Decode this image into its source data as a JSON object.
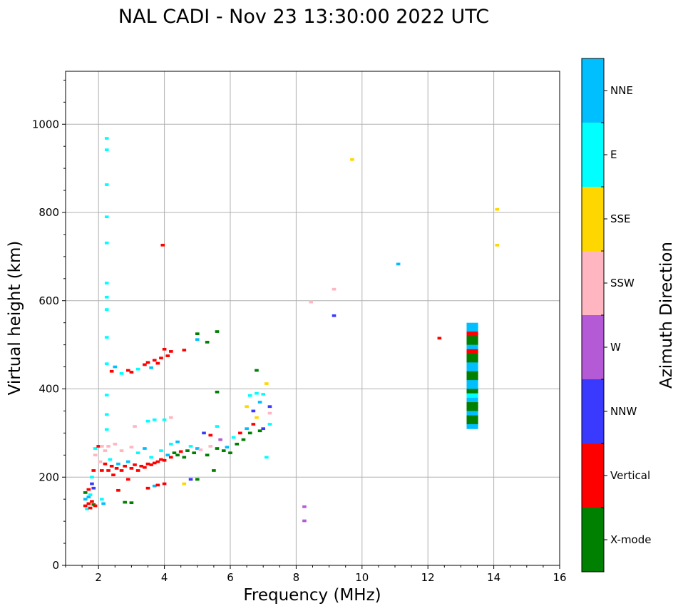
{
  "chart_data": {
    "type": "scatter",
    "title": "NAL CADI - Nov 23 13:30:00 2022 UTC",
    "xlabel": "Frequency (MHz)",
    "ylabel": "Virtual height (km)",
    "xlim": [
      1,
      16
    ],
    "ylim": [
      0,
      1120
    ],
    "xticks": [
      2,
      4,
      6,
      8,
      10,
      12,
      14,
      16
    ],
    "yticks": [
      0,
      200,
      400,
      600,
      800,
      1000
    ],
    "grid": true,
    "colorbar": {
      "label": "Azimuth Direction",
      "categories": [
        {
          "name": "X-mode",
          "color": "#008000"
        },
        {
          "name": "Vertical",
          "color": "#ff0000"
        },
        {
          "name": "NNW",
          "color": "#3a3aff"
        },
        {
          "name": "W",
          "color": "#b45ad6"
        },
        {
          "name": "SSW",
          "color": "#ffb6c1"
        },
        {
          "name": "SSE",
          "color": "#ffd700"
        },
        {
          "name": "E",
          "color": "#00ffff"
        },
        {
          "name": "NNE",
          "color": "#00bfff"
        }
      ]
    },
    "points": [
      {
        "f": 1.6,
        "h": 135,
        "c": "Vertical"
      },
      {
        "f": 1.6,
        "h": 150,
        "c": "NNE"
      },
      {
        "f": 1.6,
        "h": 165,
        "c": "X-mode"
      },
      {
        "f": 1.65,
        "h": 128,
        "c": "E"
      },
      {
        "f": 1.7,
        "h": 140,
        "c": "Vertical"
      },
      {
        "f": 1.7,
        "h": 155,
        "c": "NNE"
      },
      {
        "f": 1.7,
        "h": 172,
        "c": "Vertical"
      },
      {
        "f": 1.75,
        "h": 130,
        "c": "Vertical"
      },
      {
        "f": 1.75,
        "h": 160,
        "c": "E"
      },
      {
        "f": 1.8,
        "h": 145,
        "c": "Vertical"
      },
      {
        "f": 1.8,
        "h": 185,
        "c": "NNW"
      },
      {
        "f": 1.8,
        "h": 200,
        "c": "E"
      },
      {
        "f": 1.85,
        "h": 138,
        "c": "X-mode"
      },
      {
        "f": 1.85,
        "h": 175,
        "c": "NNW"
      },
      {
        "f": 1.85,
        "h": 215,
        "c": "Vertical"
      },
      {
        "f": 1.9,
        "h": 135,
        "c": "Vertical"
      },
      {
        "f": 1.9,
        "h": 265,
        "c": "E"
      },
      {
        "f": 1.9,
        "h": 250,
        "c": "SSW"
      },
      {
        "f": 2.0,
        "h": 270,
        "c": "Vertical"
      },
      {
        "f": 2.05,
        "h": 235,
        "c": "SSW"
      },
      {
        "f": 2.1,
        "h": 150,
        "c": "E"
      },
      {
        "f": 2.1,
        "h": 215,
        "c": "Vertical"
      },
      {
        "f": 2.1,
        "h": 270,
        "c": "SSW"
      },
      {
        "f": 2.15,
        "h": 140,
        "c": "NNE"
      },
      {
        "f": 2.2,
        "h": 230,
        "c": "Vertical"
      },
      {
        "f": 2.2,
        "h": 260,
        "c": "SSW"
      },
      {
        "f": 2.3,
        "h": 215,
        "c": "Vertical"
      },
      {
        "f": 2.3,
        "h": 270,
        "c": "SSW"
      },
      {
        "f": 2.35,
        "h": 240,
        "c": "E"
      },
      {
        "f": 2.4,
        "h": 225,
        "c": "Vertical"
      },
      {
        "f": 2.45,
        "h": 205,
        "c": "Vertical"
      },
      {
        "f": 2.5,
        "h": 275,
        "c": "SSW"
      },
      {
        "f": 2.55,
        "h": 220,
        "c": "Vertical"
      },
      {
        "f": 2.6,
        "h": 230,
        "c": "NNE"
      },
      {
        "f": 2.6,
        "h": 170,
        "c": "Vertical"
      },
      {
        "f": 2.7,
        "h": 215,
        "c": "Vertical"
      },
      {
        "f": 2.7,
        "h": 260,
        "c": "SSW"
      },
      {
        "f": 2.8,
        "h": 225,
        "c": "Vertical"
      },
      {
        "f": 2.8,
        "h": 143,
        "c": "X-mode"
      },
      {
        "f": 2.9,
        "h": 235,
        "c": "NNE"
      },
      {
        "f": 2.9,
        "h": 195,
        "c": "Vertical"
      },
      {
        "f": 3.0,
        "h": 220,
        "c": "Vertical"
      },
      {
        "f": 3.0,
        "h": 268,
        "c": "SSW"
      },
      {
        "f": 3.0,
        "h": 142,
        "c": "X-mode"
      },
      {
        "f": 3.1,
        "h": 228,
        "c": "Vertical"
      },
      {
        "f": 3.2,
        "h": 215,
        "c": "Vertical"
      },
      {
        "f": 3.2,
        "h": 255,
        "c": "E"
      },
      {
        "f": 3.3,
        "h": 225,
        "c": "Vertical"
      },
      {
        "f": 3.4,
        "h": 222,
        "c": "Vertical"
      },
      {
        "f": 3.4,
        "h": 265,
        "c": "NNE"
      },
      {
        "f": 3.5,
        "h": 230,
        "c": "Vertical"
      },
      {
        "f": 3.5,
        "h": 175,
        "c": "Vertical"
      },
      {
        "f": 3.6,
        "h": 228,
        "c": "Vertical"
      },
      {
        "f": 3.6,
        "h": 245,
        "c": "E"
      },
      {
        "f": 3.7,
        "h": 232,
        "c": "Vertical"
      },
      {
        "f": 3.7,
        "h": 180,
        "c": "NNE"
      },
      {
        "f": 3.8,
        "h": 235,
        "c": "Vertical"
      },
      {
        "f": 3.8,
        "h": 182,
        "c": "Vertical"
      },
      {
        "f": 3.9,
        "h": 240,
        "c": "Vertical"
      },
      {
        "f": 3.9,
        "h": 260,
        "c": "E"
      },
      {
        "f": 4.0,
        "h": 238,
        "c": "Vertical"
      },
      {
        "f": 4.0,
        "h": 185,
        "c": "Vertical"
      },
      {
        "f": 4.1,
        "h": 250,
        "c": "NNE"
      },
      {
        "f": 4.2,
        "h": 245,
        "c": "Vertical"
      },
      {
        "f": 4.2,
        "h": 275,
        "c": "E"
      },
      {
        "f": 4.3,
        "h": 255,
        "c": "X-mode"
      },
      {
        "f": 4.4,
        "h": 250,
        "c": "X-mode"
      },
      {
        "f": 4.4,
        "h": 280,
        "c": "NNE"
      },
      {
        "f": 4.5,
        "h": 258,
        "c": "Vertical"
      },
      {
        "f": 4.6,
        "h": 245,
        "c": "X-mode"
      },
      {
        "f": 4.6,
        "h": 185,
        "c": "SSE"
      },
      {
        "f": 4.7,
        "h": 260,
        "c": "X-mode"
      },
      {
        "f": 4.8,
        "h": 270,
        "c": "E"
      },
      {
        "f": 4.8,
        "h": 195,
        "c": "NNW"
      },
      {
        "f": 4.9,
        "h": 255,
        "c": "X-mode"
      },
      {
        "f": 5.0,
        "h": 265,
        "c": "NNE"
      },
      {
        "f": 5.0,
        "h": 195,
        "c": "X-mode"
      },
      {
        "f": 5.1,
        "h": 262,
        "c": "SSW"
      },
      {
        "f": 5.2,
        "h": 300,
        "c": "NNW"
      },
      {
        "f": 5.3,
        "h": 250,
        "c": "X-mode"
      },
      {
        "f": 5.4,
        "h": 270,
        "c": "SSW"
      },
      {
        "f": 5.4,
        "h": 295,
        "c": "Vertical"
      },
      {
        "f": 5.5,
        "h": 215,
        "c": "X-mode"
      },
      {
        "f": 5.6,
        "h": 265,
        "c": "X-mode"
      },
      {
        "f": 5.6,
        "h": 315,
        "c": "E"
      },
      {
        "f": 5.7,
        "h": 285,
        "c": "W"
      },
      {
        "f": 5.8,
        "h": 260,
        "c": "X-mode"
      },
      {
        "f": 5.9,
        "h": 268,
        "c": "NNE"
      },
      {
        "f": 6.0,
        "h": 255,
        "c": "X-mode"
      },
      {
        "f": 6.1,
        "h": 290,
        "c": "E"
      },
      {
        "f": 6.2,
        "h": 275,
        "c": "X-mode"
      },
      {
        "f": 6.3,
        "h": 300,
        "c": "Vertical"
      },
      {
        "f": 6.4,
        "h": 285,
        "c": "X-mode"
      },
      {
        "f": 6.5,
        "h": 310,
        "c": "NNE"
      },
      {
        "f": 6.5,
        "h": 360,
        "c": "SSE"
      },
      {
        "f": 6.6,
        "h": 300,
        "c": "X-mode"
      },
      {
        "f": 6.6,
        "h": 385,
        "c": "E"
      },
      {
        "f": 6.7,
        "h": 320,
        "c": "Vertical"
      },
      {
        "f": 6.7,
        "h": 350,
        "c": "NNW"
      },
      {
        "f": 6.8,
        "h": 335,
        "c": "SSE"
      },
      {
        "f": 6.8,
        "h": 390,
        "c": "E"
      },
      {
        "f": 6.8,
        "h": 442,
        "c": "X-mode"
      },
      {
        "f": 6.9,
        "h": 305,
        "c": "X-mode"
      },
      {
        "f": 6.9,
        "h": 370,
        "c": "NNE"
      },
      {
        "f": 7.0,
        "h": 310,
        "c": "NNW"
      },
      {
        "f": 7.0,
        "h": 388,
        "c": "E"
      },
      {
        "f": 7.1,
        "h": 245,
        "c": "E"
      },
      {
        "f": 7.1,
        "h": 412,
        "c": "SSE"
      },
      {
        "f": 7.2,
        "h": 320,
        "c": "E"
      },
      {
        "f": 7.2,
        "h": 345,
        "c": "SSW"
      },
      {
        "f": 7.2,
        "h": 360,
        "c": "NNW"
      },
      {
        "f": 2.4,
        "h": 440,
        "c": "Vertical"
      },
      {
        "f": 2.5,
        "h": 450,
        "c": "NNE"
      },
      {
        "f": 2.7,
        "h": 435,
        "c": "E"
      },
      {
        "f": 2.9,
        "h": 442,
        "c": "Vertical"
      },
      {
        "f": 3.0,
        "h": 438,
        "c": "Vertical"
      },
      {
        "f": 3.2,
        "h": 445,
        "c": "E"
      },
      {
        "f": 3.4,
        "h": 455,
        "c": "Vertical"
      },
      {
        "f": 3.5,
        "h": 460,
        "c": "Vertical"
      },
      {
        "f": 3.6,
        "h": 448,
        "c": "NNE"
      },
      {
        "f": 3.7,
        "h": 465,
        "c": "Vertical"
      },
      {
        "f": 3.8,
        "h": 458,
        "c": "Vertical"
      },
      {
        "f": 3.9,
        "h": 470,
        "c": "Vertical"
      },
      {
        "f": 4.0,
        "h": 490,
        "c": "Vertical"
      },
      {
        "f": 4.1,
        "h": 475,
        "c": "Vertical"
      },
      {
        "f": 4.2,
        "h": 485,
        "c": "Vertical"
      },
      {
        "f": 4.6,
        "h": 488,
        "c": "Vertical"
      },
      {
        "f": 5.0,
        "h": 525,
        "c": "X-mode"
      },
      {
        "f": 5.0,
        "h": 512,
        "c": "NNE"
      },
      {
        "f": 5.3,
        "h": 506,
        "c": "X-mode"
      },
      {
        "f": 5.6,
        "h": 530,
        "c": "X-mode"
      },
      {
        "f": 5.6,
        "h": 393,
        "c": "X-mode"
      },
      {
        "f": 2.25,
        "h": 968,
        "c": "E"
      },
      {
        "f": 2.25,
        "h": 942,
        "c": "E"
      },
      {
        "f": 2.25,
        "h": 863,
        "c": "E"
      },
      {
        "f": 2.25,
        "h": 790,
        "c": "E"
      },
      {
        "f": 2.25,
        "h": 731,
        "c": "E"
      },
      {
        "f": 2.25,
        "h": 640,
        "c": "E"
      },
      {
        "f": 2.25,
        "h": 608,
        "c": "E"
      },
      {
        "f": 2.25,
        "h": 580,
        "c": "E"
      },
      {
        "f": 2.25,
        "h": 517,
        "c": "E"
      },
      {
        "f": 2.25,
        "h": 457,
        "c": "E"
      },
      {
        "f": 2.25,
        "h": 386,
        "c": "E"
      },
      {
        "f": 2.25,
        "h": 342,
        "c": "E"
      },
      {
        "f": 2.25,
        "h": 308,
        "c": "E"
      },
      {
        "f": 3.5,
        "h": 327,
        "c": "E"
      },
      {
        "f": 3.7,
        "h": 330,
        "c": "E"
      },
      {
        "f": 4.0,
        "h": 330,
        "c": "E"
      },
      {
        "f": 4.2,
        "h": 335,
        "c": "SSW"
      },
      {
        "f": 3.1,
        "h": 315,
        "c": "SSW"
      },
      {
        "f": 3.95,
        "h": 726,
        "c": "Vertical"
      },
      {
        "f": 9.7,
        "h": 920,
        "c": "SSE"
      },
      {
        "f": 14.1,
        "h": 807,
        "c": "SSE"
      },
      {
        "f": 14.1,
        "h": 726,
        "c": "SSE"
      },
      {
        "f": 11.1,
        "h": 683,
        "c": "NNE"
      },
      {
        "f": 9.15,
        "h": 626,
        "c": "SSW"
      },
      {
        "f": 8.45,
        "h": 597,
        "c": "SSW"
      },
      {
        "f": 9.15,
        "h": 566,
        "c": "NNW"
      },
      {
        "f": 12.35,
        "h": 515,
        "c": "Vertical"
      },
      {
        "f": 8.25,
        "h": 133,
        "c": "W"
      },
      {
        "f": 8.25,
        "h": 101,
        "c": "W"
      }
    ],
    "column": {
      "f": 13.35,
      "cells": [
        {
          "h": 545,
          "c": "NNE"
        },
        {
          "h": 535,
          "c": "NNE"
        },
        {
          "h": 525,
          "c": "Vertical"
        },
        {
          "h": 515,
          "c": "X-mode"
        },
        {
          "h": 505,
          "c": "X-mode"
        },
        {
          "h": 495,
          "c": "NNE"
        },
        {
          "h": 485,
          "c": "Vertical"
        },
        {
          "h": 475,
          "c": "X-mode"
        },
        {
          "h": 465,
          "c": "X-mode"
        },
        {
          "h": 455,
          "c": "NNE"
        },
        {
          "h": 445,
          "c": "NNE"
        },
        {
          "h": 435,
          "c": "X-mode"
        },
        {
          "h": 425,
          "c": "X-mode"
        },
        {
          "h": 415,
          "c": "NNE"
        },
        {
          "h": 405,
          "c": "NNE"
        },
        {
          "h": 395,
          "c": "X-mode"
        },
        {
          "h": 385,
          "c": "E"
        },
        {
          "h": 375,
          "c": "NNE"
        },
        {
          "h": 365,
          "c": "X-mode"
        },
        {
          "h": 355,
          "c": "X-mode"
        },
        {
          "h": 345,
          "c": "NNE"
        },
        {
          "h": 335,
          "c": "X-mode"
        },
        {
          "h": 325,
          "c": "X-mode"
        },
        {
          "h": 315,
          "c": "NNE"
        }
      ]
    }
  }
}
